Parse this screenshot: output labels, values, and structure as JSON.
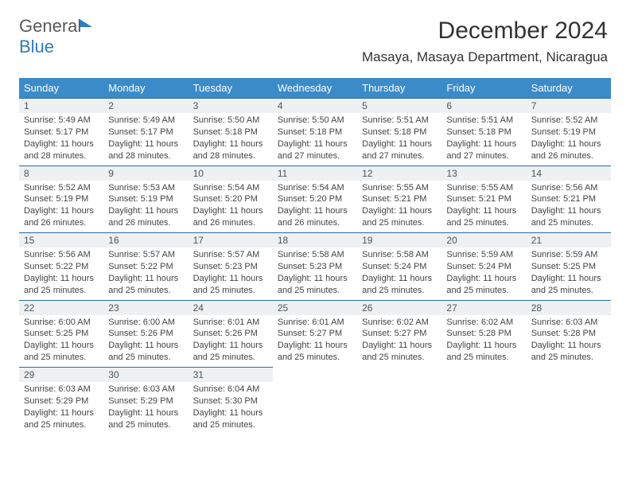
{
  "logo": {
    "text1": "General",
    "text2": "Blue"
  },
  "header": {
    "month_title": "December 2024",
    "location": "Masaya, Masaya Department, Nicaragua"
  },
  "weekdays": [
    "Sunday",
    "Monday",
    "Tuesday",
    "Wednesday",
    "Thursday",
    "Friday",
    "Saturday"
  ],
  "colors": {
    "header_bg": "#3b8bc9",
    "header_text": "#ffffff",
    "daynum_bg": "#eef0f1",
    "row_border": "#2b6ca3",
    "body_text": "#444444",
    "logo_gray": "#5a5a5a",
    "logo_blue": "#2f7bbf"
  },
  "typography": {
    "month_title_size": 30,
    "location_size": 17,
    "weekday_size": 13,
    "daynum_size": 12,
    "cell_size": 11
  },
  "weeks": [
    [
      {
        "n": "1",
        "sr": "5:49 AM",
        "ss": "5:17 PM",
        "dh": "11",
        "dm": "28"
      },
      {
        "n": "2",
        "sr": "5:49 AM",
        "ss": "5:17 PM",
        "dh": "11",
        "dm": "28"
      },
      {
        "n": "3",
        "sr": "5:50 AM",
        "ss": "5:18 PM",
        "dh": "11",
        "dm": "28"
      },
      {
        "n": "4",
        "sr": "5:50 AM",
        "ss": "5:18 PM",
        "dh": "11",
        "dm": "27"
      },
      {
        "n": "5",
        "sr": "5:51 AM",
        "ss": "5:18 PM",
        "dh": "11",
        "dm": "27"
      },
      {
        "n": "6",
        "sr": "5:51 AM",
        "ss": "5:18 PM",
        "dh": "11",
        "dm": "27"
      },
      {
        "n": "7",
        "sr": "5:52 AM",
        "ss": "5:19 PM",
        "dh": "11",
        "dm": "26"
      }
    ],
    [
      {
        "n": "8",
        "sr": "5:52 AM",
        "ss": "5:19 PM",
        "dh": "11",
        "dm": "26"
      },
      {
        "n": "9",
        "sr": "5:53 AM",
        "ss": "5:19 PM",
        "dh": "11",
        "dm": "26"
      },
      {
        "n": "10",
        "sr": "5:54 AM",
        "ss": "5:20 PM",
        "dh": "11",
        "dm": "26"
      },
      {
        "n": "11",
        "sr": "5:54 AM",
        "ss": "5:20 PM",
        "dh": "11",
        "dm": "26"
      },
      {
        "n": "12",
        "sr": "5:55 AM",
        "ss": "5:21 PM",
        "dh": "11",
        "dm": "25"
      },
      {
        "n": "13",
        "sr": "5:55 AM",
        "ss": "5:21 PM",
        "dh": "11",
        "dm": "25"
      },
      {
        "n": "14",
        "sr": "5:56 AM",
        "ss": "5:21 PM",
        "dh": "11",
        "dm": "25"
      }
    ],
    [
      {
        "n": "15",
        "sr": "5:56 AM",
        "ss": "5:22 PM",
        "dh": "11",
        "dm": "25"
      },
      {
        "n": "16",
        "sr": "5:57 AM",
        "ss": "5:22 PM",
        "dh": "11",
        "dm": "25"
      },
      {
        "n": "17",
        "sr": "5:57 AM",
        "ss": "5:23 PM",
        "dh": "11",
        "dm": "25"
      },
      {
        "n": "18",
        "sr": "5:58 AM",
        "ss": "5:23 PM",
        "dh": "11",
        "dm": "25"
      },
      {
        "n": "19",
        "sr": "5:58 AM",
        "ss": "5:24 PM",
        "dh": "11",
        "dm": "25"
      },
      {
        "n": "20",
        "sr": "5:59 AM",
        "ss": "5:24 PM",
        "dh": "11",
        "dm": "25"
      },
      {
        "n": "21",
        "sr": "5:59 AM",
        "ss": "5:25 PM",
        "dh": "11",
        "dm": "25"
      }
    ],
    [
      {
        "n": "22",
        "sr": "6:00 AM",
        "ss": "5:25 PM",
        "dh": "11",
        "dm": "25"
      },
      {
        "n": "23",
        "sr": "6:00 AM",
        "ss": "5:26 PM",
        "dh": "11",
        "dm": "25"
      },
      {
        "n": "24",
        "sr": "6:01 AM",
        "ss": "5:26 PM",
        "dh": "11",
        "dm": "25"
      },
      {
        "n": "25",
        "sr": "6:01 AM",
        "ss": "5:27 PM",
        "dh": "11",
        "dm": "25"
      },
      {
        "n": "26",
        "sr": "6:02 AM",
        "ss": "5:27 PM",
        "dh": "11",
        "dm": "25"
      },
      {
        "n": "27",
        "sr": "6:02 AM",
        "ss": "5:28 PM",
        "dh": "11",
        "dm": "25"
      },
      {
        "n": "28",
        "sr": "6:03 AM",
        "ss": "5:28 PM",
        "dh": "11",
        "dm": "25"
      }
    ],
    [
      {
        "n": "29",
        "sr": "6:03 AM",
        "ss": "5:29 PM",
        "dh": "11",
        "dm": "25"
      },
      {
        "n": "30",
        "sr": "6:03 AM",
        "ss": "5:29 PM",
        "dh": "11",
        "dm": "25"
      },
      {
        "n": "31",
        "sr": "6:04 AM",
        "ss": "5:30 PM",
        "dh": "11",
        "dm": "25"
      },
      null,
      null,
      null,
      null
    ]
  ]
}
